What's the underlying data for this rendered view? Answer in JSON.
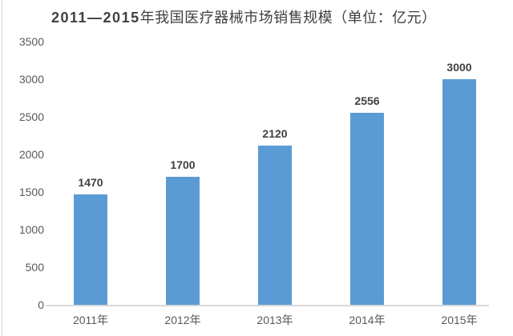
{
  "title": {
    "range": "2011—2015",
    "text": "年我国医疗器械市场销售规模（单位：亿元）"
  },
  "chart_data": {
    "type": "bar",
    "title": "2011—2015年我国医疗器械市场销售规模（单位：亿元）",
    "unit": "亿元",
    "categories": [
      "2011年",
      "2012年",
      "2013年",
      "2014年",
      "2015年"
    ],
    "values": [
      1470,
      1700,
      2120,
      2556,
      3000
    ],
    "value_labels": [
      "1470",
      "1700",
      "2120",
      "2556",
      "3000"
    ],
    "xlabel": "",
    "ylabel": "",
    "ylim": [
      0,
      3500
    ],
    "yticks": [
      0,
      500,
      1000,
      1500,
      2000,
      2500,
      3000,
      3500
    ],
    "grid": false,
    "legend": false,
    "bar_color": "#5b9bd5"
  },
  "colors": {
    "background": "#ffffff",
    "bar": "#5b9bd5",
    "axis_line": "#d9d9d9",
    "tick_label": "#595959",
    "category_label": "#595959",
    "value_label": "#404040",
    "title": "#404040",
    "left_border": "#d9d9d9"
  }
}
